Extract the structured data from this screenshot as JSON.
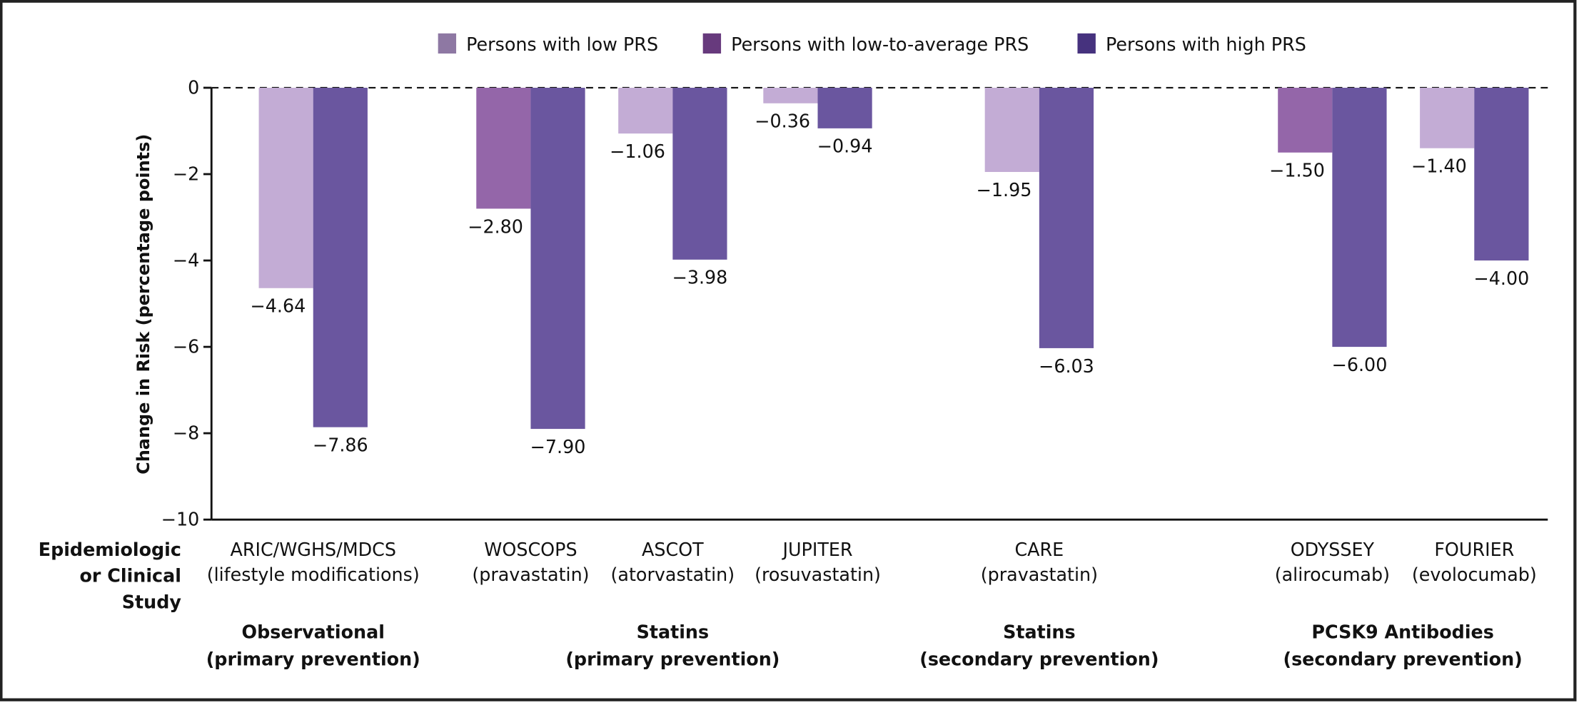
{
  "chart_data": {
    "type": "bar",
    "ylabel": "Change in Risk (percentage points)",
    "ylim": [
      -10,
      0
    ],
    "yticks": [
      "0",
      "−2",
      "−4",
      "−6",
      "−8",
      "−10"
    ],
    "ytick_values": [
      0,
      -2,
      -4,
      -6,
      -8,
      -10
    ],
    "grid": false,
    "legend_position": "top",
    "xaxis_title": [
      "Epidemiologic",
      "or Clinical",
      "Study"
    ],
    "series": [
      {
        "name": "Persons with low PRS",
        "color": "#c3acd5",
        "legend_color": "#8e78a3"
      },
      {
        "name": "Persons with low-to-average PRS",
        "color": "#9466a9",
        "legend_color": "#673a7d"
      },
      {
        "name": "Persons with high PRS",
        "color": "#6a569f",
        "legend_color": "#46327e"
      }
    ],
    "studies": [
      {
        "name": "ARIC/WGHS/MDCS",
        "sub": "(lifestyle modifications)",
        "bars": [
          {
            "series": 0,
            "value": -4.64,
            "label": "−4.64"
          },
          {
            "series": 2,
            "value": -7.86,
            "label": "−7.86"
          }
        ]
      },
      {
        "name": "WOSCOPS",
        "sub": "(pravastatin)",
        "bars": [
          {
            "series": 1,
            "value": -2.8,
            "label": "−2.80"
          },
          {
            "series": 2,
            "value": -7.9,
            "label": "−7.90"
          }
        ]
      },
      {
        "name": "ASCOT",
        "sub": "(atorvastatin)",
        "bars": [
          {
            "series": 0,
            "value": -1.06,
            "label": "−1.06"
          },
          {
            "series": 2,
            "value": -3.98,
            "label": "−3.98"
          }
        ]
      },
      {
        "name": "JUPITER",
        "sub": "(rosuvastatin)",
        "bars": [
          {
            "series": 0,
            "value": -0.36,
            "label": "−0.36"
          },
          {
            "series": 2,
            "value": -0.94,
            "label": "−0.94"
          }
        ]
      },
      {
        "name": "CARE",
        "sub": "(pravastatin)",
        "bars": [
          {
            "series": 0,
            "value": -1.95,
            "label": "−1.95"
          },
          {
            "series": 2,
            "value": -6.03,
            "label": "−6.03"
          }
        ]
      },
      {
        "name": "ODYSSEY",
        "sub": "(alirocumab)",
        "bars": [
          {
            "series": 1,
            "value": -1.5,
            "label": "−1.50"
          },
          {
            "series": 2,
            "value": -6.0,
            "label": "−6.00"
          }
        ]
      },
      {
        "name": "FOURIER",
        "sub": "(evolocumab)",
        "bars": [
          {
            "series": 0,
            "value": -1.4,
            "label": "−1.40"
          },
          {
            "series": 2,
            "value": -4.0,
            "label": "−4.00"
          }
        ]
      }
    ],
    "categories": [
      {
        "line1": "Observational",
        "line2": "(primary prevention)"
      },
      {
        "line1": "Statins",
        "line2": "(primary prevention)"
      },
      {
        "line1": "Statins",
        "line2": "(secondary prevention)"
      },
      {
        "line1": "PCSK9 Antibodies",
        "line2": "(secondary prevention)"
      }
    ]
  }
}
